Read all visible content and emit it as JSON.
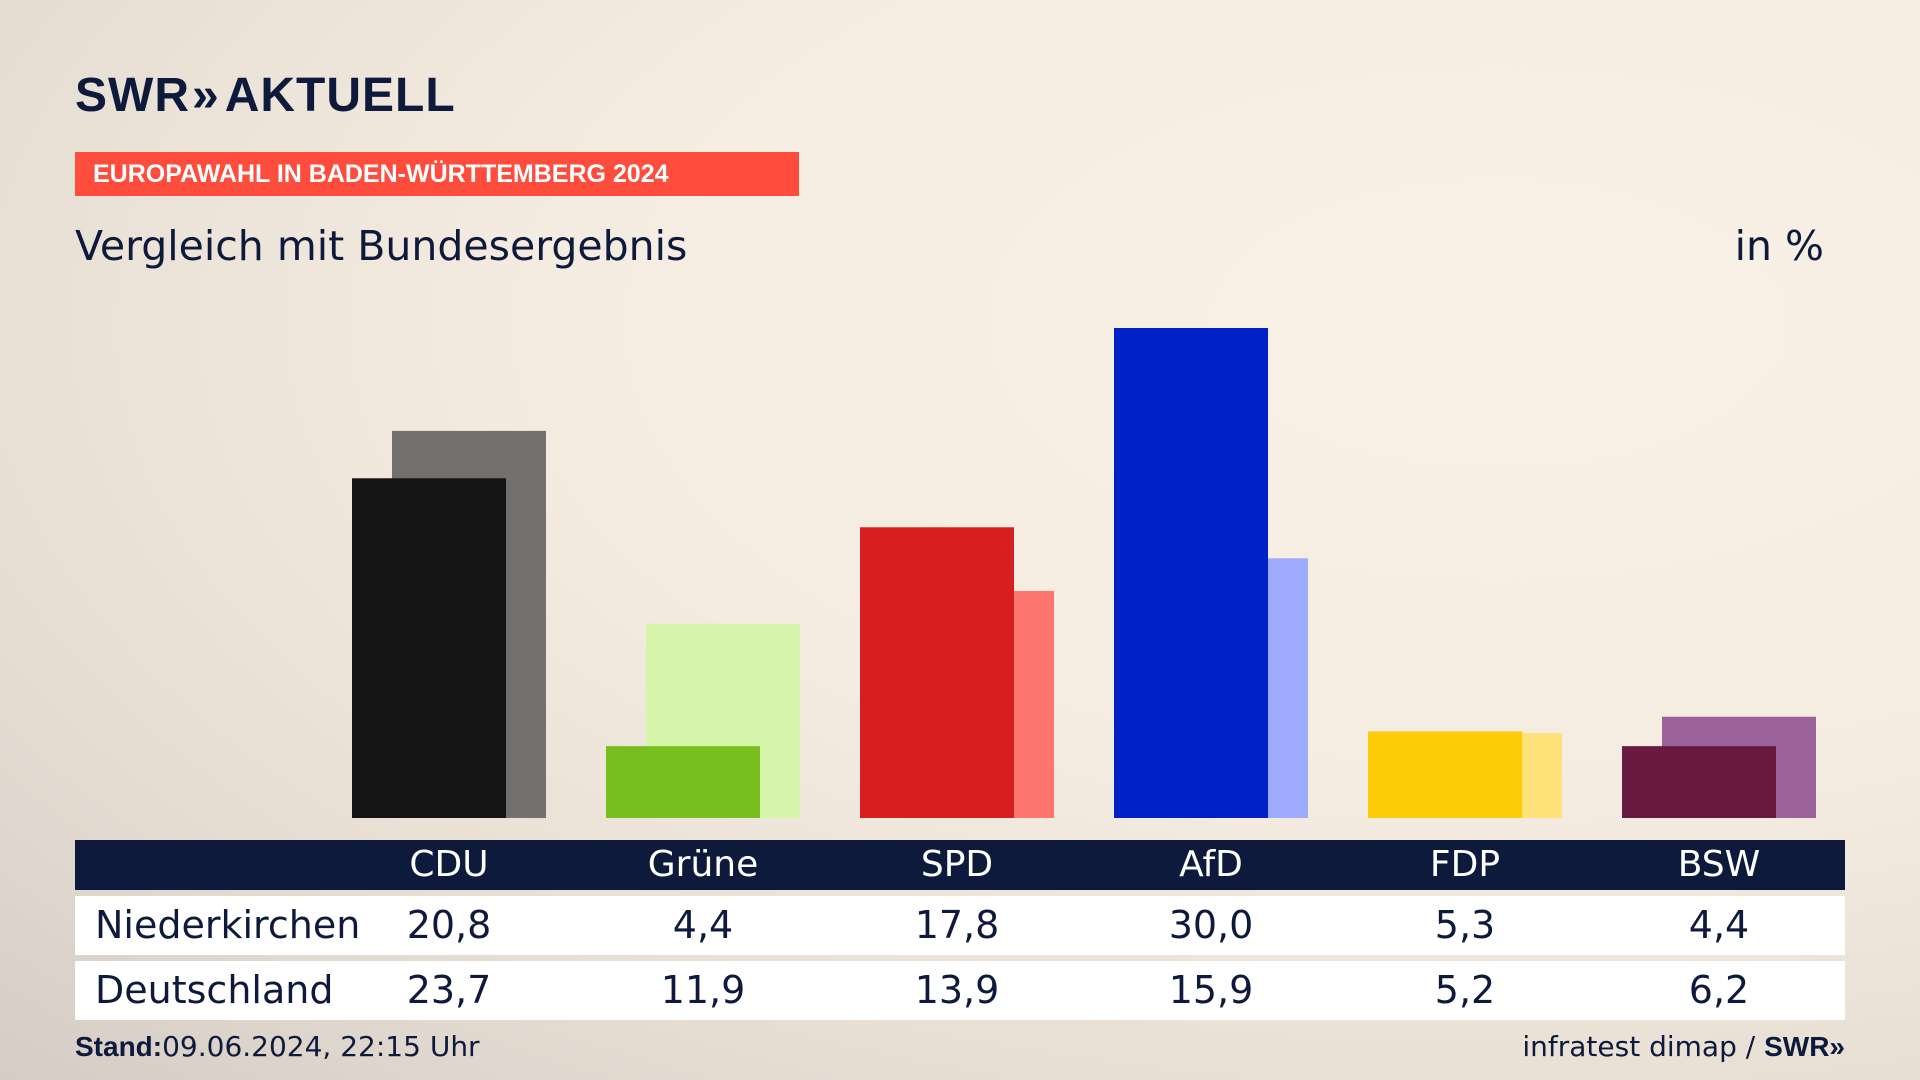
{
  "brand": {
    "name": "SWR",
    "chevron": "»",
    "product": "AKTUELL"
  },
  "banner": "EUROPAWAHL IN BADEN-WÜRTTEMBERG 2024",
  "subtitle": "Vergleich mit Bundesergebnis",
  "unit": "in %",
  "footer": {
    "stand_label": "Stand:",
    "stand_value": "09.06.2024, 22:15 Uhr",
    "source": "infratest dimap /",
    "source_brand": "SWR»"
  },
  "colors": {
    "CDU": [
      "#141414",
      "#737170"
    ],
    "Grüne": [
      "#78be1e",
      "#d7f5aa"
    ],
    "SPD": [
      "#d71f1f",
      "#ff7670"
    ],
    "AfD": [
      "#0020c8",
      "#9eaafb"
    ],
    "FDP": [
      "#ffcc0a",
      "#ffe17a"
    ],
    "BSW": [
      "#6a1941",
      "#9b6199"
    ]
  },
  "chart_data": {
    "type": "bar",
    "categories": [
      "CDU",
      "Grüne",
      "SPD",
      "AfD",
      "FDP",
      "BSW"
    ],
    "series": [
      {
        "name": "Niederkirchen",
        "values": [
          20.8,
          4.4,
          17.8,
          30.0,
          5.3,
          4.4
        ]
      },
      {
        "name": "Deutschland",
        "values": [
          23.7,
          11.9,
          13.9,
          15.9,
          5.2,
          6.2
        ]
      }
    ],
    "value_labels": [
      [
        "20,8",
        "4,4",
        "17,8",
        "30,0",
        "5,3",
        "4,4"
      ],
      [
        "23,7",
        "11,9",
        "13,9",
        "15,9",
        "5,2",
        "6,2"
      ]
    ],
    "ylim": [
      0,
      30
    ],
    "grid": false
  }
}
